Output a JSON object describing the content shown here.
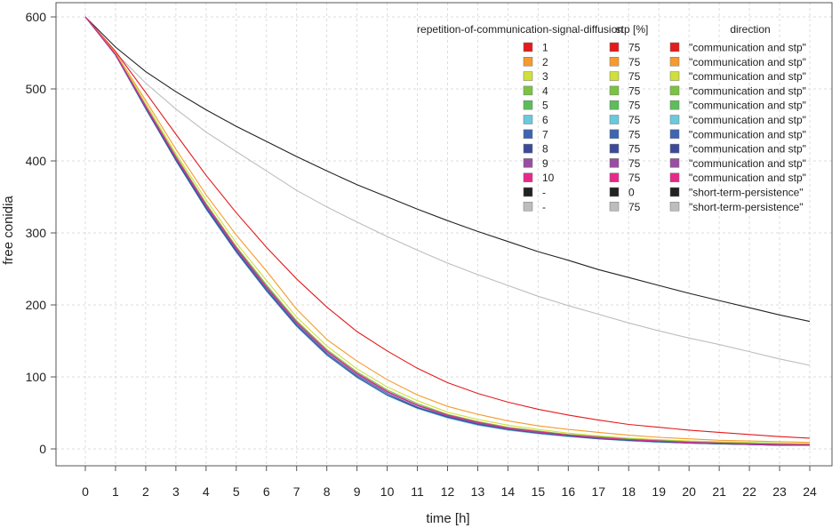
{
  "chart_data": {
    "type": "line",
    "title": "",
    "xlabel": "time [h]",
    "ylabel": "free conidia",
    "xlim": [
      0,
      24
    ],
    "ylim": [
      0,
      600
    ],
    "x": [
      0,
      1,
      2,
      3,
      4,
      5,
      6,
      7,
      8,
      9,
      10,
      11,
      12,
      13,
      14,
      15,
      16,
      17,
      18,
      19,
      20,
      21,
      22,
      23,
      24
    ],
    "x_ticks": [
      "0",
      "1",
      "2",
      "3",
      "4",
      "5",
      "6",
      "7",
      "8",
      "9",
      "10",
      "11",
      "12",
      "13",
      "14",
      "15",
      "16",
      "17",
      "18",
      "19",
      "20",
      "21",
      "22",
      "23",
      "24"
    ],
    "y_ticks": [
      "0",
      "100",
      "200",
      "300",
      "400",
      "500",
      "600"
    ],
    "grid": true,
    "legend": {
      "position": "top-right",
      "headers": [
        "repetition-of-communication-signal-diffusion",
        "stp [%]",
        "direction"
      ],
      "entries": [
        {
          "repetition": "1",
          "stp": "75",
          "direction": "\"communication and stp\"",
          "color": "#e41a1c"
        },
        {
          "repetition": "2",
          "stp": "75",
          "direction": "\"communication and stp\"",
          "color": "#f59a2e"
        },
        {
          "repetition": "3",
          "stp": "75",
          "direction": "\"communication and stp\"",
          "color": "#cfe03a"
        },
        {
          "repetition": "4",
          "stp": "75",
          "direction": "\"communication and stp\"",
          "color": "#7cc243"
        },
        {
          "repetition": "5",
          "stp": "75",
          "direction": "\"communication and stp\"",
          "color": "#5cbd5a"
        },
        {
          "repetition": "6",
          "stp": "75",
          "direction": "\"communication and stp\"",
          "color": "#6cc8dc"
        },
        {
          "repetition": "7",
          "stp": "75",
          "direction": "\"communication and stp\"",
          "color": "#3f64b0"
        },
        {
          "repetition": "8",
          "stp": "75",
          "direction": "\"communication and stp\"",
          "color": "#3d4a9a"
        },
        {
          "repetition": "9",
          "stp": "75",
          "direction": "\"communication and stp\"",
          "color": "#984ea3"
        },
        {
          "repetition": "10",
          "stp": "75",
          "direction": "\"communication and stp\"",
          "color": "#e7298a"
        },
        {
          "repetition": "-",
          "stp": "0",
          "direction": "\"short-term-persistence\"",
          "color": "#222222"
        },
        {
          "repetition": "-",
          "stp": "75",
          "direction": "\"short-term-persistence\"",
          "color": "#bdbdbd"
        }
      ]
    },
    "series": [
      {
        "name": "repetition 1",
        "color": "#e41a1c",
        "values": [
          600,
          552,
          495,
          437,
          380,
          328,
          280,
          236,
          197,
          163,
          136,
          112,
          92,
          77,
          65,
          55,
          47,
          40,
          34,
          30,
          26,
          23,
          20,
          17,
          15
        ]
      },
      {
        "name": "repetition 2",
        "color": "#f59a2e",
        "values": [
          600,
          550,
          484,
          416,
          353,
          297,
          247,
          194,
          152,
          122,
          96,
          75,
          59,
          48,
          39,
          32,
          27,
          23,
          19,
          16,
          14,
          12,
          11,
          10,
          9
        ]
      },
      {
        "name": "repetition 3",
        "color": "#cfe03a",
        "values": [
          600,
          549,
          480,
          410,
          346,
          286,
          234,
          183,
          143,
          111,
          86,
          67,
          51,
          41,
          33,
          27,
          22,
          18,
          15,
          13,
          11,
          10,
          9,
          8,
          7
        ]
      },
      {
        "name": "repetition 4",
        "color": "#7cc243",
        "values": [
          600,
          548,
          477,
          407,
          341,
          281,
          228,
          178,
          138,
          107,
          82,
          63,
          48,
          38,
          30,
          25,
          20,
          17,
          14,
          12,
          10,
          9,
          8,
          7,
          6
        ]
      },
      {
        "name": "repetition 5",
        "color": "#5cbd5a",
        "values": [
          600,
          548,
          476,
          405,
          339,
          279,
          226,
          176,
          136,
          105,
          80,
          61,
          47,
          37,
          29,
          24,
          20,
          16,
          13,
          11,
          10,
          8,
          7,
          6,
          6
        ]
      },
      {
        "name": "repetition 6",
        "color": "#6cc8dc",
        "values": [
          600,
          547,
          472,
          400,
          333,
          273,
          219,
          170,
          130,
          99,
          74,
          56,
          43,
          33,
          26,
          21,
          17,
          14,
          11,
          9,
          8,
          7,
          6,
          5,
          5
        ]
      },
      {
        "name": "repetition 7",
        "color": "#3f64b0",
        "values": [
          600,
          547,
          474,
          403,
          336,
          276,
          222,
          173,
          133,
          102,
          77,
          58,
          45,
          35,
          27,
          22,
          18,
          15,
          12,
          10,
          8,
          7,
          6,
          5,
          5
        ]
      },
      {
        "name": "repetition 8",
        "color": "#3d4a9a",
        "values": [
          600,
          547,
          473,
          401,
          334,
          274,
          220,
          171,
          131,
          100,
          75,
          57,
          44,
          34,
          27,
          22,
          18,
          14,
          12,
          10,
          8,
          7,
          6,
          5,
          5
        ]
      },
      {
        "name": "repetition 9",
        "color": "#984ea3",
        "values": [
          600,
          548,
          475,
          404,
          338,
          278,
          224,
          175,
          135,
          104,
          79,
          60,
          46,
          36,
          28,
          23,
          19,
          15,
          13,
          11,
          9,
          8,
          7,
          6,
          6
        ]
      },
      {
        "name": "repetition 10",
        "color": "#e7298a",
        "values": [
          600,
          548,
          476,
          405,
          339,
          279,
          225,
          176,
          136,
          105,
          80,
          61,
          47,
          37,
          29,
          24,
          19,
          16,
          13,
          11,
          9,
          8,
          7,
          6,
          6
        ]
      },
      {
        "name": "stp 0 short-term-persistence",
        "color": "#222222",
        "values": [
          600,
          558,
          524,
          496,
          471,
          448,
          427,
          406,
          386,
          367,
          350,
          333,
          317,
          302,
          288,
          274,
          262,
          249,
          238,
          227,
          216,
          206,
          196,
          186,
          177
        ]
      },
      {
        "name": "stp 75 short-term-persistence",
        "color": "#bdbdbd",
        "values": [
          600,
          550,
          508,
          472,
          440,
          413,
          386,
          359,
          336,
          315,
          295,
          276,
          258,
          242,
          227,
          212,
          199,
          187,
          175,
          164,
          154,
          145,
          135,
          125,
          116
        ]
      }
    ]
  }
}
